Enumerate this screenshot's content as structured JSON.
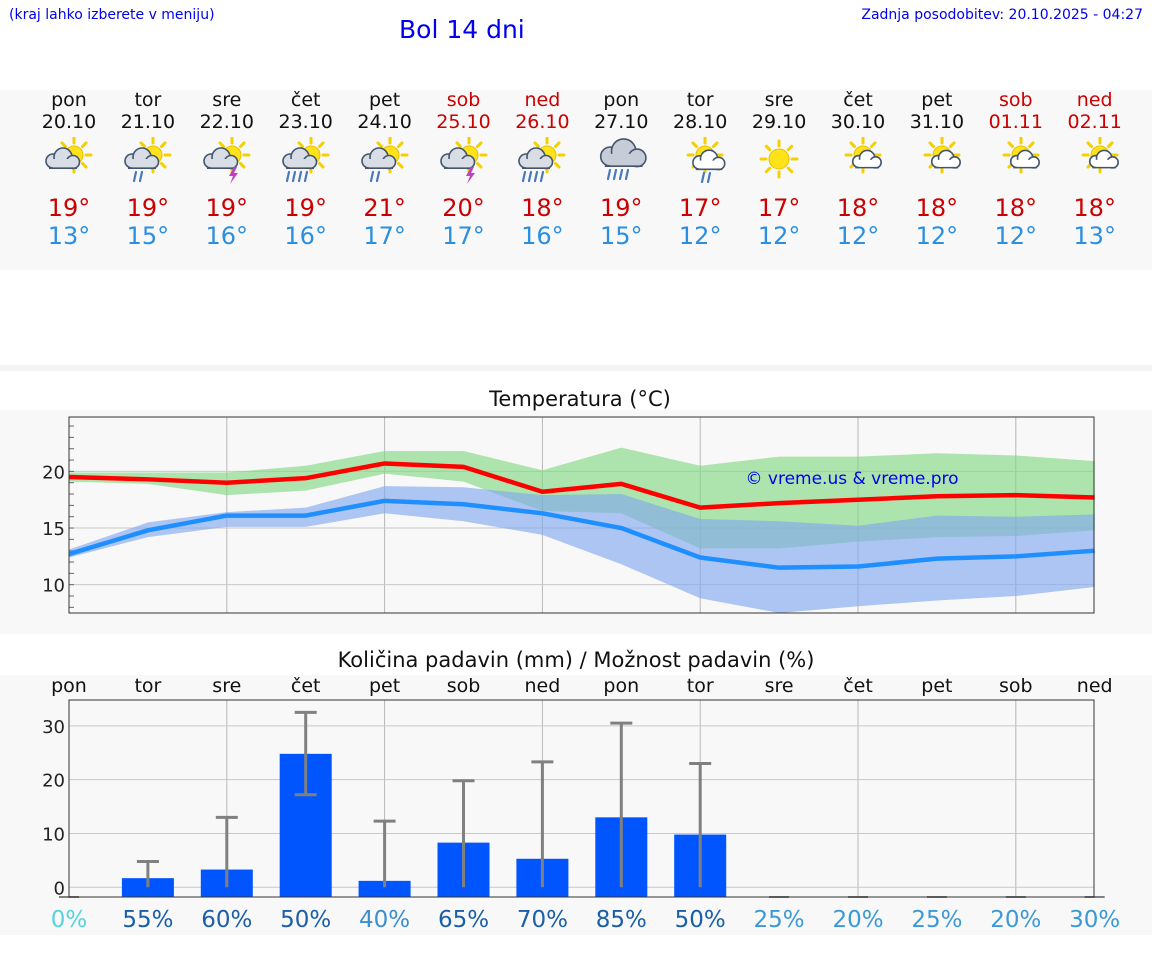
{
  "header": {
    "note": "(kraj lahko izberete v meniju)",
    "title": "Bol 14 dni",
    "updated": "Zadnja posodobitev: 20.10.2025 - 04:27"
  },
  "days": [
    {
      "name": "pon",
      "date": "20.10",
      "weekend": false,
      "icon": "sun-cloud-icon",
      "max": "19°",
      "min": "13°"
    },
    {
      "name": "tor",
      "date": "21.10",
      "weekend": false,
      "icon": "sun-cloud-rain-icon",
      "max": "19°",
      "min": "15°"
    },
    {
      "name": "sre",
      "date": "22.10",
      "weekend": false,
      "icon": "sun-thunder-icon",
      "max": "19°",
      "min": "16°"
    },
    {
      "name": "čet",
      "date": "23.10",
      "weekend": false,
      "icon": "sun-cloud-heavy-rain-icon",
      "max": "19°",
      "min": "16°"
    },
    {
      "name": "pet",
      "date": "24.10",
      "weekend": false,
      "icon": "sun-cloud-rain-icon",
      "max": "21°",
      "min": "17°"
    },
    {
      "name": "sob",
      "date": "25.10",
      "weekend": true,
      "icon": "sun-thunder-icon",
      "max": "20°",
      "min": "17°"
    },
    {
      "name": "ned",
      "date": "26.10",
      "weekend": true,
      "icon": "sun-cloud-heavy-rain-icon",
      "max": "18°",
      "min": "16°"
    },
    {
      "name": "pon",
      "date": "27.10",
      "weekend": false,
      "icon": "cloud-heavy-rain-icon",
      "max": "19°",
      "min": "15°"
    },
    {
      "name": "tor",
      "date": "28.10",
      "weekend": false,
      "icon": "sun-rain-icon",
      "max": "17°",
      "min": "12°"
    },
    {
      "name": "sre",
      "date": "29.10",
      "weekend": false,
      "icon": "sun-icon",
      "max": "17°",
      "min": "12°"
    },
    {
      "name": "čet",
      "date": "30.10",
      "weekend": false,
      "icon": "sun-small-cloud-icon",
      "max": "18°",
      "min": "12°"
    },
    {
      "name": "pet",
      "date": "31.10",
      "weekend": false,
      "icon": "sun-small-cloud-icon",
      "max": "18°",
      "min": "12°"
    },
    {
      "name": "sob",
      "date": "01.11",
      "weekend": true,
      "icon": "sun-small-cloud-icon",
      "max": "18°",
      "min": "12°"
    },
    {
      "name": "ned",
      "date": "02.11",
      "weekend": true,
      "icon": "sun-small-cloud-icon",
      "max": "18°",
      "min": "13°"
    }
  ],
  "chart_data": [
    {
      "type": "line",
      "title": "Temperatura (°C)",
      "watermark": "© vreme.us & vreme.pro",
      "x": [
        "20.10",
        "21.10",
        "22.10",
        "23.10",
        "24.10",
        "25.10",
        "26.10",
        "27.10",
        "28.10",
        "29.10",
        "30.10",
        "31.10",
        "01.11",
        "02.11"
      ],
      "yticks": [
        10,
        15,
        20
      ],
      "ylim": [
        7.5,
        24.8
      ],
      "grid": true,
      "series": [
        {
          "values": [
            19.5,
            19.3,
            19.0,
            19.4,
            20.7,
            20.4,
            18.2,
            18.9,
            16.8,
            17.2,
            17.5,
            17.8,
            17.9,
            17.7
          ],
          "color": "#ff0000"
        },
        {
          "values": [
            12.7,
            14.8,
            16.1,
            16.1,
            17.4,
            17.1,
            16.3,
            15.0,
            12.4,
            11.5,
            11.6,
            12.3,
            12.5,
            13.0
          ],
          "color": "#1f8fff"
        }
      ],
      "bands": [
        {
          "upper": [
            19.9,
            19.9,
            19.9,
            20.5,
            21.8,
            21.8,
            20.1,
            22.1,
            20.5,
            21.3,
            21.3,
            21.6,
            21.4,
            20.9
          ],
          "lower": [
            19.1,
            18.9,
            17.9,
            18.3,
            19.8,
            19.1,
            16.5,
            16.3,
            13.2,
            13.2,
            13.8,
            14.2,
            14.3,
            14.8
          ],
          "color": "#7fd67f"
        },
        {
          "upper": [
            13.1,
            15.5,
            16.4,
            16.8,
            18.7,
            18.6,
            17.9,
            18.0,
            15.8,
            15.6,
            15.2,
            16.1,
            16.0,
            16.2
          ],
          "lower": [
            12.4,
            14.2,
            15.1,
            15.1,
            16.3,
            15.6,
            14.4,
            11.8,
            8.8,
            7.5,
            8.1,
            8.6,
            9.0,
            9.8
          ],
          "color": "#7fa6ef"
        }
      ]
    },
    {
      "type": "bar",
      "title": "Količina padavin (mm) / Možnost padavin (%)",
      "categories": [
        "pon",
        "tor",
        "sre",
        "čet",
        "pet",
        "sob",
        "ned",
        "pon",
        "tor",
        "sre",
        "čet",
        "pet",
        "sob",
        "ned"
      ],
      "values": [
        0,
        1.7,
        3.3,
        24.8,
        1.2,
        8.3,
        5.3,
        13.0,
        9.8,
        0,
        0,
        0,
        0,
        0
      ],
      "error_high": [
        0,
        4.8,
        13.0,
        32.5,
        12.3,
        19.8,
        23.3,
        30.5,
        23.0,
        0,
        0,
        0,
        0,
        0
      ],
      "error_low": [
        0,
        0,
        0,
        17.2,
        0,
        0,
        0,
        0,
        0,
        0,
        0,
        0,
        0,
        0
      ],
      "probability": [
        "0%",
        "55%",
        "60%",
        "50%",
        "40%",
        "65%",
        "70%",
        "85%",
        "50%",
        "25%",
        "20%",
        "25%",
        "20%",
        "30%"
      ],
      "prob_colors": [
        "#55d4e0",
        "#1a5fa8",
        "#1a5fa8",
        "#1a5fa8",
        "#3a8fcf",
        "#1a5fa8",
        "#1a5fa8",
        "#1a5fa8",
        "#1a5fa8",
        "#3a9ad8",
        "#3a9ad8",
        "#3a9ad8",
        "#3a9ad8",
        "#3a9ad8"
      ],
      "yticks": [
        0,
        10,
        20,
        30
      ],
      "ylim": [
        -1.8,
        34.8
      ],
      "grid": true,
      "bar_color": "#0055ff",
      "error_color": "#808080"
    }
  ]
}
